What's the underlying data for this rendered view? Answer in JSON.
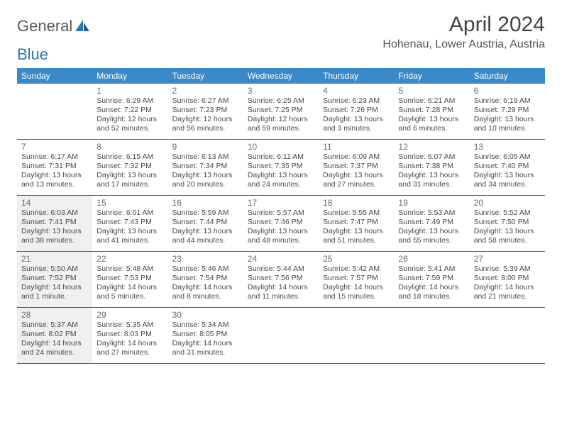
{
  "logo": {
    "text1": "General",
    "text2": "Blue"
  },
  "title": "April 2024",
  "location": "Hohenau, Lower Austria, Austria",
  "colors": {
    "header_bg": "#3a8ac9",
    "header_text": "#ffffff",
    "row_border": "#2e5c8a",
    "shaded_bg": "#f0f0f0",
    "text": "#4a4a4a",
    "logo_gray": "#5a5a5a",
    "logo_blue": "#2e75b6"
  },
  "weekdays": [
    "Sunday",
    "Monday",
    "Tuesday",
    "Wednesday",
    "Thursday",
    "Friday",
    "Saturday"
  ],
  "weeks": [
    [
      {
        "n": "",
        "shaded": false,
        "lines": []
      },
      {
        "n": "1",
        "shaded": false,
        "lines": [
          "Sunrise: 6:29 AM",
          "Sunset: 7:22 PM",
          "Daylight: 12 hours",
          "and 52 minutes."
        ]
      },
      {
        "n": "2",
        "shaded": false,
        "lines": [
          "Sunrise: 6:27 AM",
          "Sunset: 7:23 PM",
          "Daylight: 12 hours",
          "and 56 minutes."
        ]
      },
      {
        "n": "3",
        "shaded": false,
        "lines": [
          "Sunrise: 6:25 AM",
          "Sunset: 7:25 PM",
          "Daylight: 12 hours",
          "and 59 minutes."
        ]
      },
      {
        "n": "4",
        "shaded": false,
        "lines": [
          "Sunrise: 6:23 AM",
          "Sunset: 7:26 PM",
          "Daylight: 13 hours",
          "and 3 minutes."
        ]
      },
      {
        "n": "5",
        "shaded": false,
        "lines": [
          "Sunrise: 6:21 AM",
          "Sunset: 7:28 PM",
          "Daylight: 13 hours",
          "and 6 minutes."
        ]
      },
      {
        "n": "6",
        "shaded": false,
        "lines": [
          "Sunrise: 6:19 AM",
          "Sunset: 7:29 PM",
          "Daylight: 13 hours",
          "and 10 minutes."
        ]
      }
    ],
    [
      {
        "n": "7",
        "shaded": false,
        "lines": [
          "Sunrise: 6:17 AM",
          "Sunset: 7:31 PM",
          "Daylight: 13 hours",
          "and 13 minutes."
        ]
      },
      {
        "n": "8",
        "shaded": false,
        "lines": [
          "Sunrise: 6:15 AM",
          "Sunset: 7:32 PM",
          "Daylight: 13 hours",
          "and 17 minutes."
        ]
      },
      {
        "n": "9",
        "shaded": false,
        "lines": [
          "Sunrise: 6:13 AM",
          "Sunset: 7:34 PM",
          "Daylight: 13 hours",
          "and 20 minutes."
        ]
      },
      {
        "n": "10",
        "shaded": false,
        "lines": [
          "Sunrise: 6:11 AM",
          "Sunset: 7:35 PM",
          "Daylight: 13 hours",
          "and 24 minutes."
        ]
      },
      {
        "n": "11",
        "shaded": false,
        "lines": [
          "Sunrise: 6:09 AM",
          "Sunset: 7:37 PM",
          "Daylight: 13 hours",
          "and 27 minutes."
        ]
      },
      {
        "n": "12",
        "shaded": false,
        "lines": [
          "Sunrise: 6:07 AM",
          "Sunset: 7:38 PM",
          "Daylight: 13 hours",
          "and 31 minutes."
        ]
      },
      {
        "n": "13",
        "shaded": false,
        "lines": [
          "Sunrise: 6:05 AM",
          "Sunset: 7:40 PM",
          "Daylight: 13 hours",
          "and 34 minutes."
        ]
      }
    ],
    [
      {
        "n": "14",
        "shaded": true,
        "lines": [
          "Sunrise: 6:03 AM",
          "Sunset: 7:41 PM",
          "Daylight: 13 hours",
          "and 38 minutes."
        ]
      },
      {
        "n": "15",
        "shaded": false,
        "lines": [
          "Sunrise: 6:01 AM",
          "Sunset: 7:43 PM",
          "Daylight: 13 hours",
          "and 41 minutes."
        ]
      },
      {
        "n": "16",
        "shaded": false,
        "lines": [
          "Sunrise: 5:59 AM",
          "Sunset: 7:44 PM",
          "Daylight: 13 hours",
          "and 44 minutes."
        ]
      },
      {
        "n": "17",
        "shaded": false,
        "lines": [
          "Sunrise: 5:57 AM",
          "Sunset: 7:46 PM",
          "Daylight: 13 hours",
          "and 48 minutes."
        ]
      },
      {
        "n": "18",
        "shaded": false,
        "lines": [
          "Sunrise: 5:55 AM",
          "Sunset: 7:47 PM",
          "Daylight: 13 hours",
          "and 51 minutes."
        ]
      },
      {
        "n": "19",
        "shaded": false,
        "lines": [
          "Sunrise: 5:53 AM",
          "Sunset: 7:49 PM",
          "Daylight: 13 hours",
          "and 55 minutes."
        ]
      },
      {
        "n": "20",
        "shaded": false,
        "lines": [
          "Sunrise: 5:52 AM",
          "Sunset: 7:50 PM",
          "Daylight: 13 hours",
          "and 58 minutes."
        ]
      }
    ],
    [
      {
        "n": "21",
        "shaded": true,
        "lines": [
          "Sunrise: 5:50 AM",
          "Sunset: 7:52 PM",
          "Daylight: 14 hours",
          "and 1 minute."
        ]
      },
      {
        "n": "22",
        "shaded": false,
        "lines": [
          "Sunrise: 5:48 AM",
          "Sunset: 7:53 PM",
          "Daylight: 14 hours",
          "and 5 minutes."
        ]
      },
      {
        "n": "23",
        "shaded": false,
        "lines": [
          "Sunrise: 5:46 AM",
          "Sunset: 7:54 PM",
          "Daylight: 14 hours",
          "and 8 minutes."
        ]
      },
      {
        "n": "24",
        "shaded": false,
        "lines": [
          "Sunrise: 5:44 AM",
          "Sunset: 7:56 PM",
          "Daylight: 14 hours",
          "and 11 minutes."
        ]
      },
      {
        "n": "25",
        "shaded": false,
        "lines": [
          "Sunrise: 5:42 AM",
          "Sunset: 7:57 PM",
          "Daylight: 14 hours",
          "and 15 minutes."
        ]
      },
      {
        "n": "26",
        "shaded": false,
        "lines": [
          "Sunrise: 5:41 AM",
          "Sunset: 7:59 PM",
          "Daylight: 14 hours",
          "and 18 minutes."
        ]
      },
      {
        "n": "27",
        "shaded": false,
        "lines": [
          "Sunrise: 5:39 AM",
          "Sunset: 8:00 PM",
          "Daylight: 14 hours",
          "and 21 minutes."
        ]
      }
    ],
    [
      {
        "n": "28",
        "shaded": true,
        "lines": [
          "Sunrise: 5:37 AM",
          "Sunset: 8:02 PM",
          "Daylight: 14 hours",
          "and 24 minutes."
        ]
      },
      {
        "n": "29",
        "shaded": false,
        "lines": [
          "Sunrise: 5:35 AM",
          "Sunset: 8:03 PM",
          "Daylight: 14 hours",
          "and 27 minutes."
        ]
      },
      {
        "n": "30",
        "shaded": false,
        "lines": [
          "Sunrise: 5:34 AM",
          "Sunset: 8:05 PM",
          "Daylight: 14 hours",
          "and 31 minutes."
        ]
      },
      {
        "n": "",
        "shaded": false,
        "lines": []
      },
      {
        "n": "",
        "shaded": false,
        "lines": []
      },
      {
        "n": "",
        "shaded": false,
        "lines": []
      },
      {
        "n": "",
        "shaded": false,
        "lines": []
      }
    ]
  ]
}
